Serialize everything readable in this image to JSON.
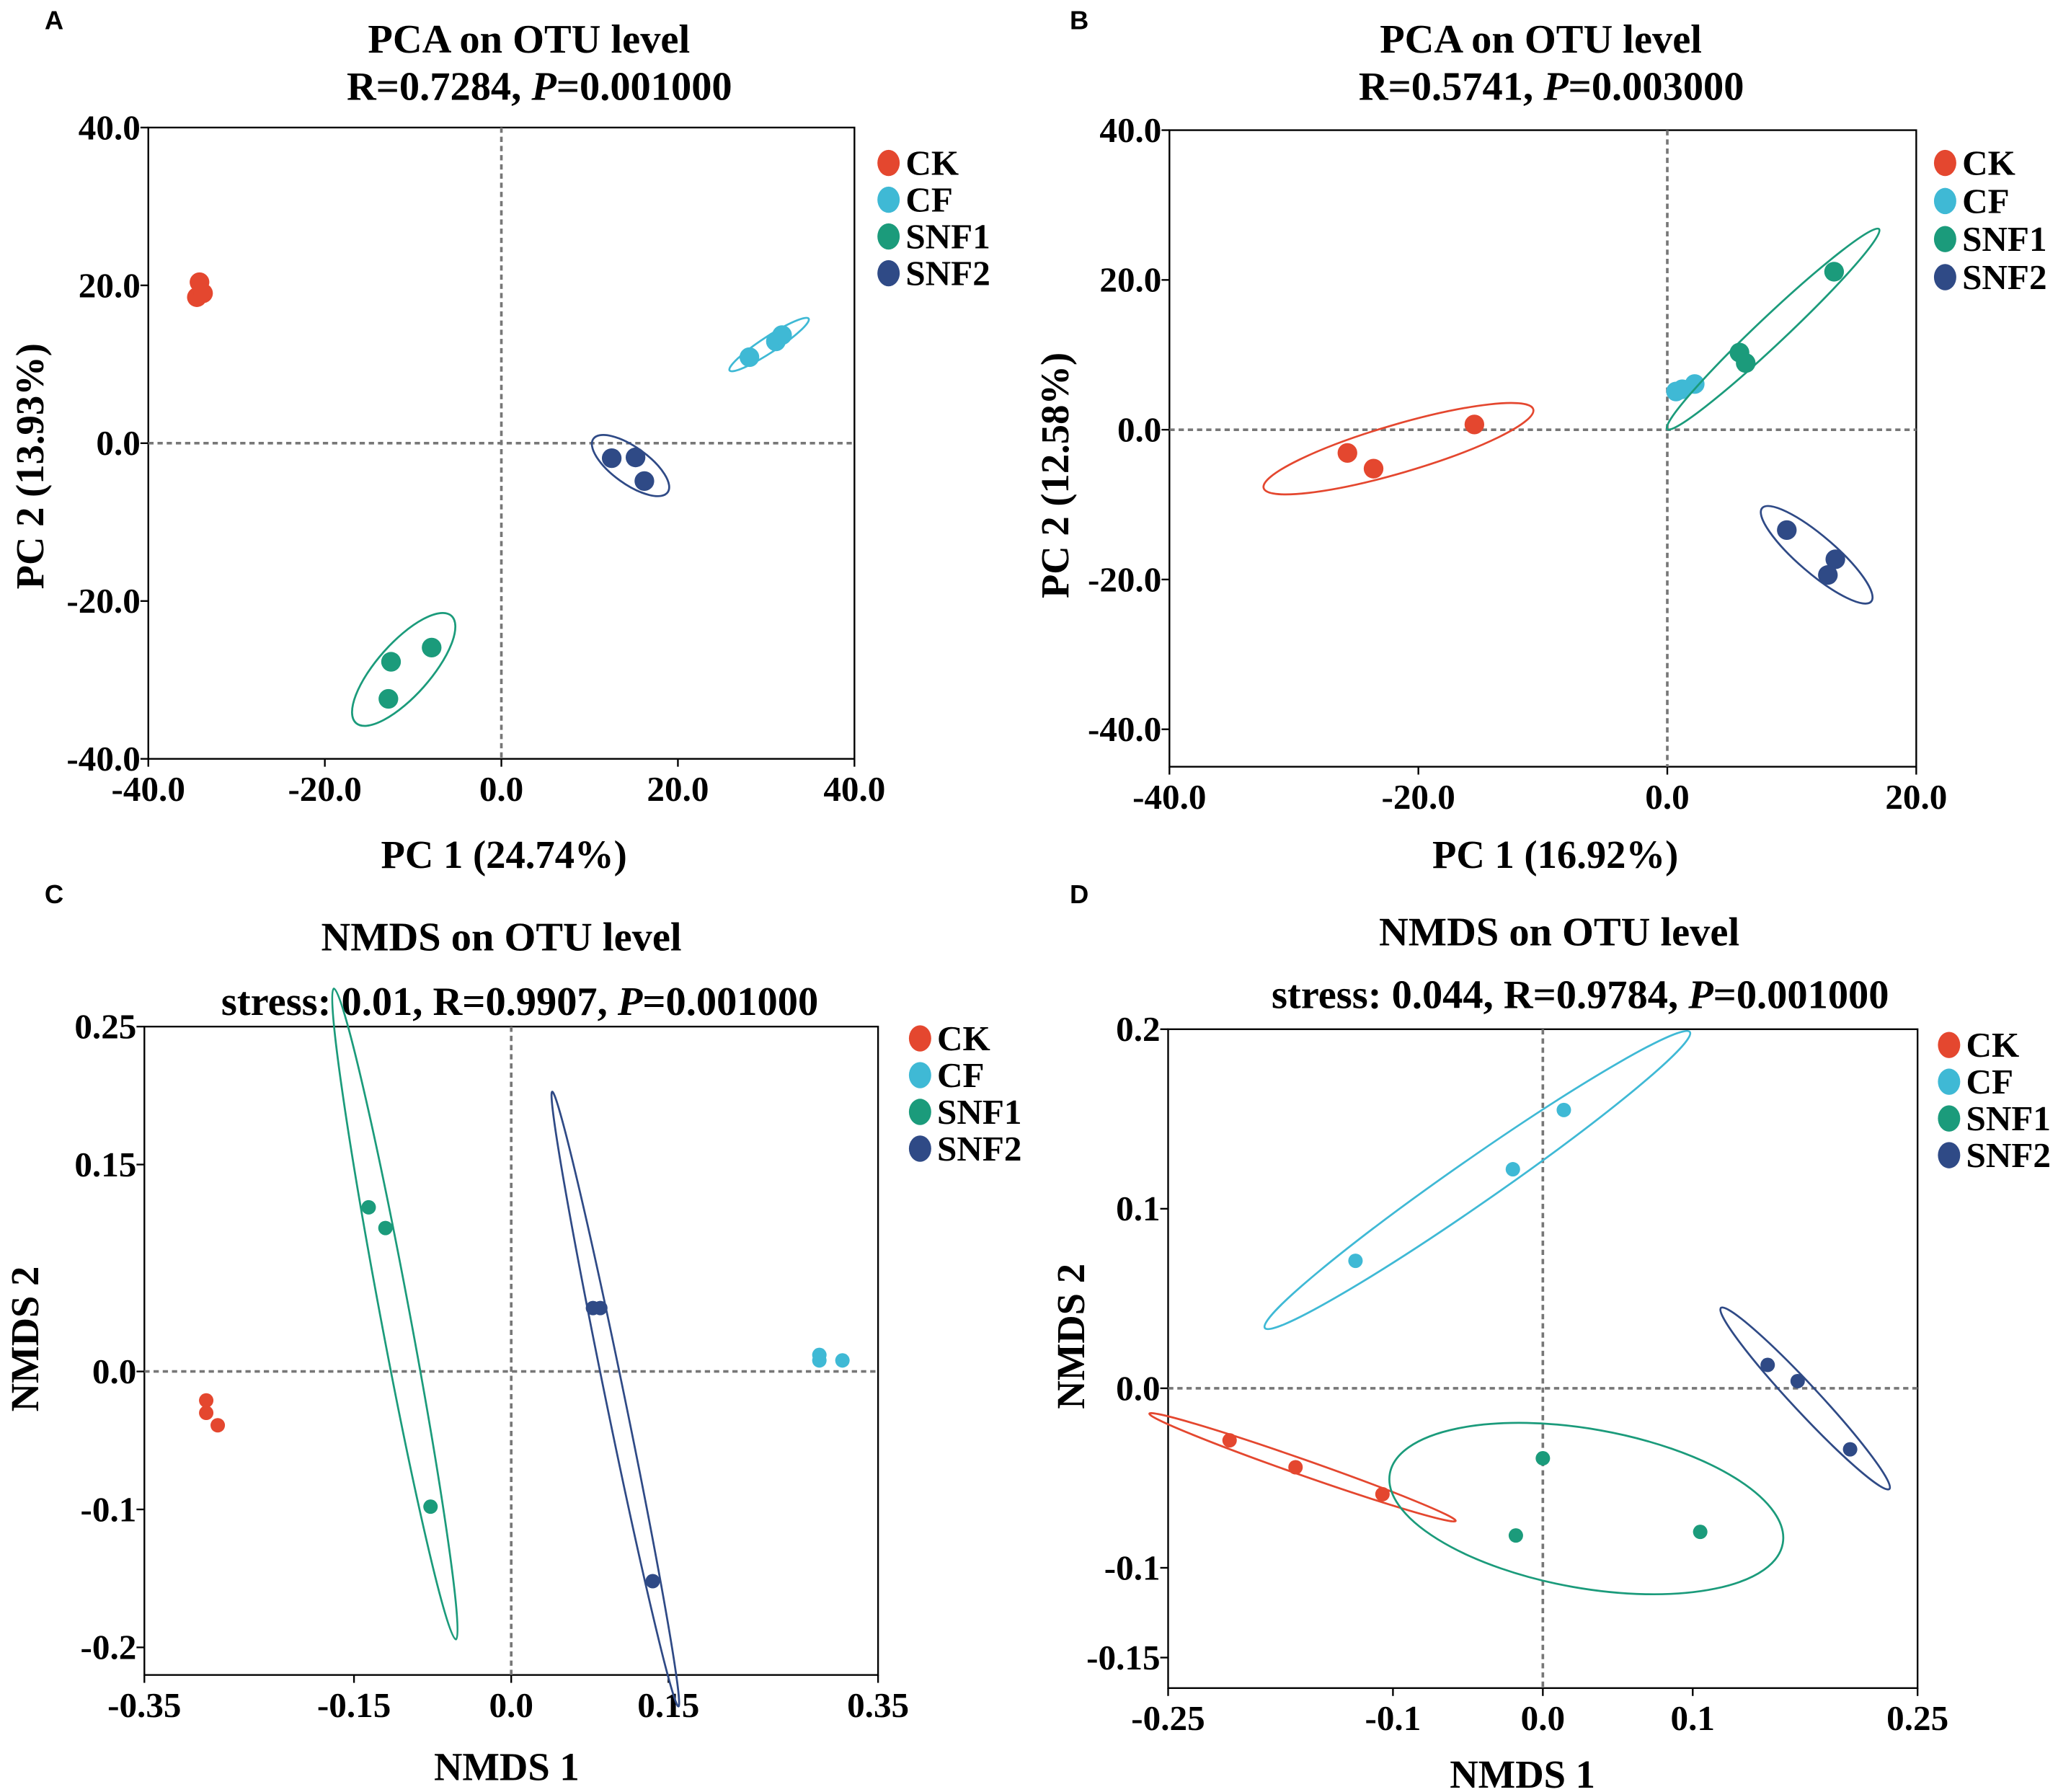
{
  "colors": {
    "CK": "#e4472f",
    "CF": "#3fb9d5",
    "SNF1": "#1b9b7b",
    "SNF2": "#2f4a86"
  },
  "chart_data": [
    {
      "panel": "A",
      "type": "scatter",
      "title": "PCA on OTU level",
      "subtitle_prefix": "R=0.7284, ",
      "subtitle_italic": "P",
      "subtitle_suffix": "=0.001000",
      "xlabel": "PC 1 (24.74%)",
      "ylabel": "PC 2 (13.93%)",
      "xlim": [
        -40,
        40
      ],
      "ylim": [
        -40,
        40
      ],
      "x_ticks": [
        {
          "v": -40,
          "label": "-40.0"
        },
        {
          "v": -20,
          "label": "-20.0"
        },
        {
          "v": 0,
          "label": "0.0"
        },
        {
          "v": 20,
          "label": "20.0"
        },
        {
          "v": 40,
          "label": "40.0"
        }
      ],
      "y_ticks": [
        {
          "v": 40,
          "label": "40.0"
        },
        {
          "v": 20,
          "label": "20.0"
        },
        {
          "v": 0,
          "label": "0.0"
        },
        {
          "v": -20,
          "label": "-20.0"
        },
        {
          "v": -40,
          "label": "-40.0"
        }
      ],
      "legend": [
        "CK",
        "CF",
        "SNF1",
        "SNF2"
      ],
      "series": [
        {
          "name": "CK",
          "ellipse": false,
          "points": [
            [
              -34.2,
              20.4
            ],
            [
              -34.5,
              18.5
            ],
            [
              -33.8,
              19.0
            ]
          ]
        },
        {
          "name": "CF",
          "ellipse": true,
          "points": [
            [
              28.1,
              10.9
            ],
            [
              31.1,
              12.9
            ],
            [
              31.8,
              13.7
            ]
          ]
        },
        {
          "name": "SNF1",
          "ellipse": true,
          "points": [
            [
              -12.5,
              -27.7
            ],
            [
              -12.8,
              -32.4
            ],
            [
              -7.9,
              -25.9
            ]
          ]
        },
        {
          "name": "SNF2",
          "ellipse": true,
          "points": [
            [
              12.5,
              -1.9
            ],
            [
              15.2,
              -1.8
            ],
            [
              16.2,
              -4.8
            ]
          ]
        }
      ]
    },
    {
      "panel": "B",
      "type": "scatter",
      "title": "PCA on OTU level",
      "subtitle_prefix": "R=0.5741, ",
      "subtitle_italic": "P",
      "subtitle_suffix": "=0.003000",
      "xlabel": "PC 1 (16.92%)",
      "ylabel": "PC 2 (12.58%)",
      "xlim": [
        -40,
        20
      ],
      "ylim": [
        -45,
        40
      ],
      "x_ticks": [
        {
          "v": -40,
          "label": "-40.0"
        },
        {
          "v": -20,
          "label": "-20.0"
        },
        {
          "v": 0,
          "label": "0.0"
        },
        {
          "v": 20,
          "label": "20.0"
        }
      ],
      "y_ticks": [
        {
          "v": 40,
          "label": "40.0"
        },
        {
          "v": 20,
          "label": "20.0"
        },
        {
          "v": 0,
          "label": "0.0"
        },
        {
          "v": -20,
          "label": "-20.0"
        },
        {
          "v": -40,
          "label": "-40.0"
        }
      ],
      "legend": [
        "CK",
        "CF",
        "SNF1",
        "SNF2"
      ],
      "series": [
        {
          "name": "CK",
          "ellipse": true,
          "points": [
            [
              -25.7,
              -3.1
            ],
            [
              -23.6,
              -5.2
            ],
            [
              -15.5,
              0.7
            ]
          ]
        },
        {
          "name": "CF",
          "ellipse": false,
          "points": [
            [
              0.7,
              5.1
            ],
            [
              1.2,
              5.4
            ],
            [
              2.2,
              6.1
            ]
          ]
        },
        {
          "name": "SNF1",
          "ellipse": true,
          "points": [
            [
              5.8,
              10.3
            ],
            [
              6.3,
              8.9
            ],
            [
              13.4,
              21.1
            ]
          ]
        },
        {
          "name": "SNF2",
          "ellipse": true,
          "points": [
            [
              9.6,
              -13.4
            ],
            [
              13.5,
              -17.3
            ],
            [
              12.9,
              -19.4
            ]
          ]
        }
      ]
    },
    {
      "panel": "C",
      "type": "scatter",
      "title": "NMDS on OTU level",
      "subtitle_prefix": "stress: 0.01, R=0.9907, ",
      "subtitle_italic": "P",
      "subtitle_suffix": "=0.001000",
      "xlabel": "NMDS 1",
      "ylabel": "NMDS 2",
      "xlim": [
        -0.35,
        0.35
      ],
      "ylim": [
        -0.22,
        0.25
      ],
      "x_ticks": [
        {
          "v": -0.35,
          "label": "-0.35"
        },
        {
          "v": -0.15,
          "label": "-0.15"
        },
        {
          "v": 0,
          "label": "0.0"
        },
        {
          "v": 0.15,
          "label": "0.15"
        },
        {
          "v": 0.35,
          "label": "0.35"
        }
      ],
      "y_ticks": [
        {
          "v": 0.25,
          "label": "0.25"
        },
        {
          "v": 0.15,
          "label": "0.15"
        },
        {
          "v": 0,
          "label": "0.0"
        },
        {
          "v": -0.1,
          "label": "-0.1"
        },
        {
          "v": -0.2,
          "label": "-0.2"
        }
      ],
      "legend": [
        "CK",
        "CF",
        "SNF1",
        "SNF2"
      ],
      "series": [
        {
          "name": "CK",
          "ellipse": false,
          "points": [
            [
              -0.291,
              -0.021
            ],
            [
              -0.291,
              -0.03
            ],
            [
              -0.28,
              -0.039
            ]
          ]
        },
        {
          "name": "CF",
          "ellipse": false,
          "points": [
            [
              0.294,
              0.012
            ],
            [
              0.294,
              0.008
            ],
            [
              0.316,
              0.008
            ]
          ]
        },
        {
          "name": "SNF1",
          "ellipse": true,
          "points": [
            [
              -0.136,
              0.119
            ],
            [
              -0.12,
              0.104
            ],
            [
              -0.077,
              -0.098
            ]
          ]
        },
        {
          "name": "SNF2",
          "ellipse": true,
          "points": [
            [
              0.078,
              0.046
            ],
            [
              0.085,
              0.046
            ],
            [
              0.135,
              -0.152
            ]
          ]
        }
      ]
    },
    {
      "panel": "D",
      "type": "scatter",
      "title": "NMDS on OTU level",
      "subtitle_prefix": "stress: 0.044, R=0.9784, ",
      "subtitle_italic": "P",
      "subtitle_suffix": "=0.001000",
      "xlabel": "NMDS 1",
      "ylabel": "NMDS 2",
      "xlim": [
        -0.25,
        0.25
      ],
      "ylim": [
        -0.167,
        0.2
      ],
      "x_ticks": [
        {
          "v": -0.25,
          "label": "-0.25"
        },
        {
          "v": -0.1,
          "label": "-0.1"
        },
        {
          "v": 0,
          "label": "0.0"
        },
        {
          "v": 0.1,
          "label": "0.1"
        },
        {
          "v": 0.25,
          "label": "0.25"
        }
      ],
      "y_ticks": [
        {
          "v": 0.2,
          "label": "0.2"
        },
        {
          "v": 0.1,
          "label": "0.1"
        },
        {
          "v": 0,
          "label": "0.0"
        },
        {
          "v": -0.1,
          "label": "-0.1"
        },
        {
          "v": -0.15,
          "label": "-0.15"
        }
      ],
      "legend": [
        "CK",
        "CF",
        "SNF1",
        "SNF2"
      ],
      "series": [
        {
          "name": "CK",
          "ellipse": true,
          "points": [
            [
              -0.209,
              -0.029
            ],
            [
              -0.165,
              -0.044
            ],
            [
              -0.107,
              -0.059
            ]
          ]
        },
        {
          "name": "CF",
          "ellipse": true,
          "points": [
            [
              -0.125,
              0.071
            ],
            [
              -0.02,
              0.122
            ],
            [
              0.014,
              0.155
            ]
          ]
        },
        {
          "name": "SNF1",
          "ellipse": true,
          "points": [
            [
              0.0,
              -0.039
            ],
            [
              -0.018,
              -0.082
            ],
            [
              0.105,
              -0.08
            ]
          ]
        },
        {
          "name": "SNF2",
          "ellipse": true,
          "points": [
            [
              0.15,
              0.013
            ],
            [
              0.17,
              0.004
            ],
            [
              0.205,
              -0.034
            ]
          ]
        }
      ]
    }
  ]
}
